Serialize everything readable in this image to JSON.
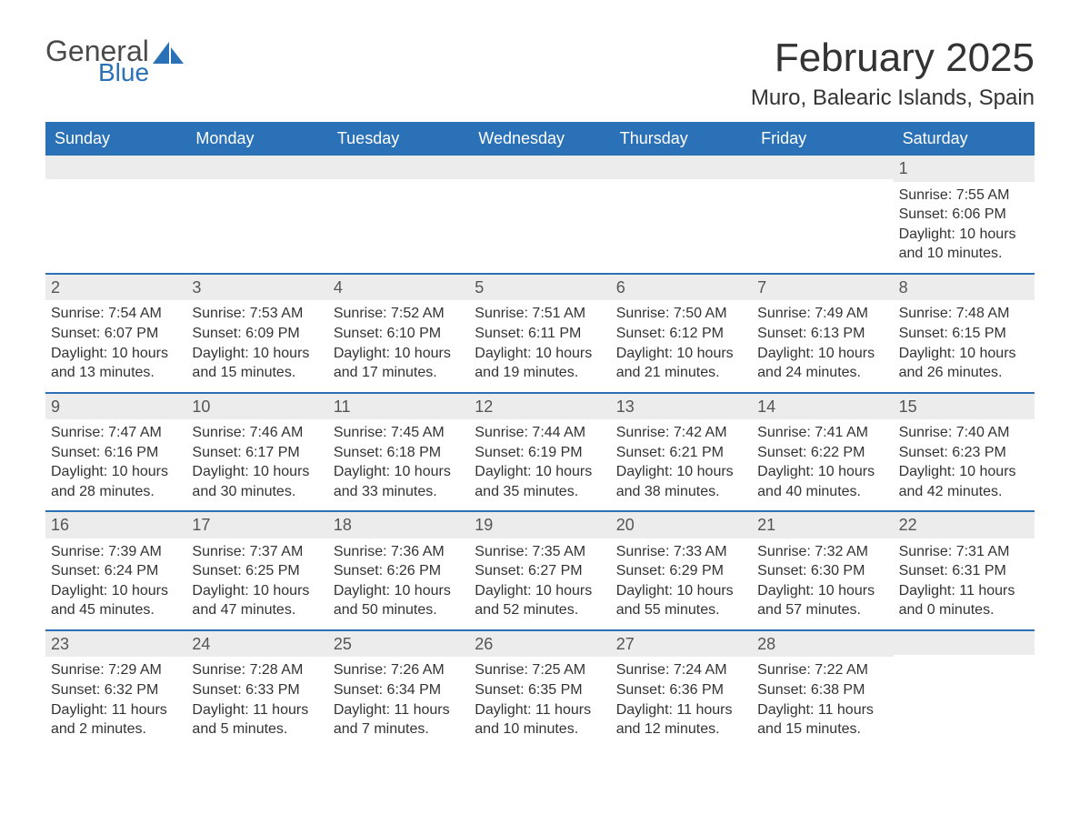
{
  "logo": {
    "general": "General",
    "blue": "Blue"
  },
  "title": "February 2025",
  "location": "Muro, Balearic Islands, Spain",
  "colors": {
    "header_bg": "#2a71b8",
    "header_text": "#ffffff",
    "daynum_bg": "#ececec",
    "border": "#2a71b8",
    "body_text": "#333333"
  },
  "layout": {
    "columns": 7,
    "rows": 5,
    "start_day_index": 6,
    "days_in_month": 28
  },
  "dow": [
    "Sunday",
    "Monday",
    "Tuesday",
    "Wednesday",
    "Thursday",
    "Friday",
    "Saturday"
  ],
  "days": [
    {
      "n": 1,
      "sunrise": "7:55 AM",
      "sunset": "6:06 PM",
      "daylight": "10 hours and 10 minutes."
    },
    {
      "n": 2,
      "sunrise": "7:54 AM",
      "sunset": "6:07 PM",
      "daylight": "10 hours and 13 minutes."
    },
    {
      "n": 3,
      "sunrise": "7:53 AM",
      "sunset": "6:09 PM",
      "daylight": "10 hours and 15 minutes."
    },
    {
      "n": 4,
      "sunrise": "7:52 AM",
      "sunset": "6:10 PM",
      "daylight": "10 hours and 17 minutes."
    },
    {
      "n": 5,
      "sunrise": "7:51 AM",
      "sunset": "6:11 PM",
      "daylight": "10 hours and 19 minutes."
    },
    {
      "n": 6,
      "sunrise": "7:50 AM",
      "sunset": "6:12 PM",
      "daylight": "10 hours and 21 minutes."
    },
    {
      "n": 7,
      "sunrise": "7:49 AM",
      "sunset": "6:13 PM",
      "daylight": "10 hours and 24 minutes."
    },
    {
      "n": 8,
      "sunrise": "7:48 AM",
      "sunset": "6:15 PM",
      "daylight": "10 hours and 26 minutes."
    },
    {
      "n": 9,
      "sunrise": "7:47 AM",
      "sunset": "6:16 PM",
      "daylight": "10 hours and 28 minutes."
    },
    {
      "n": 10,
      "sunrise": "7:46 AM",
      "sunset": "6:17 PM",
      "daylight": "10 hours and 30 minutes."
    },
    {
      "n": 11,
      "sunrise": "7:45 AM",
      "sunset": "6:18 PM",
      "daylight": "10 hours and 33 minutes."
    },
    {
      "n": 12,
      "sunrise": "7:44 AM",
      "sunset": "6:19 PM",
      "daylight": "10 hours and 35 minutes."
    },
    {
      "n": 13,
      "sunrise": "7:42 AM",
      "sunset": "6:21 PM",
      "daylight": "10 hours and 38 minutes."
    },
    {
      "n": 14,
      "sunrise": "7:41 AM",
      "sunset": "6:22 PM",
      "daylight": "10 hours and 40 minutes."
    },
    {
      "n": 15,
      "sunrise": "7:40 AM",
      "sunset": "6:23 PM",
      "daylight": "10 hours and 42 minutes."
    },
    {
      "n": 16,
      "sunrise": "7:39 AM",
      "sunset": "6:24 PM",
      "daylight": "10 hours and 45 minutes."
    },
    {
      "n": 17,
      "sunrise": "7:37 AM",
      "sunset": "6:25 PM",
      "daylight": "10 hours and 47 minutes."
    },
    {
      "n": 18,
      "sunrise": "7:36 AM",
      "sunset": "6:26 PM",
      "daylight": "10 hours and 50 minutes."
    },
    {
      "n": 19,
      "sunrise": "7:35 AM",
      "sunset": "6:27 PM",
      "daylight": "10 hours and 52 minutes."
    },
    {
      "n": 20,
      "sunrise": "7:33 AM",
      "sunset": "6:29 PM",
      "daylight": "10 hours and 55 minutes."
    },
    {
      "n": 21,
      "sunrise": "7:32 AM",
      "sunset": "6:30 PM",
      "daylight": "10 hours and 57 minutes."
    },
    {
      "n": 22,
      "sunrise": "7:31 AM",
      "sunset": "6:31 PM",
      "daylight": "11 hours and 0 minutes."
    },
    {
      "n": 23,
      "sunrise": "7:29 AM",
      "sunset": "6:32 PM",
      "daylight": "11 hours and 2 minutes."
    },
    {
      "n": 24,
      "sunrise": "7:28 AM",
      "sunset": "6:33 PM",
      "daylight": "11 hours and 5 minutes."
    },
    {
      "n": 25,
      "sunrise": "7:26 AM",
      "sunset": "6:34 PM",
      "daylight": "11 hours and 7 minutes."
    },
    {
      "n": 26,
      "sunrise": "7:25 AM",
      "sunset": "6:35 PM",
      "daylight": "11 hours and 10 minutes."
    },
    {
      "n": 27,
      "sunrise": "7:24 AM",
      "sunset": "6:36 PM",
      "daylight": "11 hours and 12 minutes."
    },
    {
      "n": 28,
      "sunrise": "7:22 AM",
      "sunset": "6:38 PM",
      "daylight": "11 hours and 15 minutes."
    }
  ],
  "labels": {
    "sunrise": "Sunrise: ",
    "sunset": "Sunset: ",
    "daylight": "Daylight: "
  }
}
